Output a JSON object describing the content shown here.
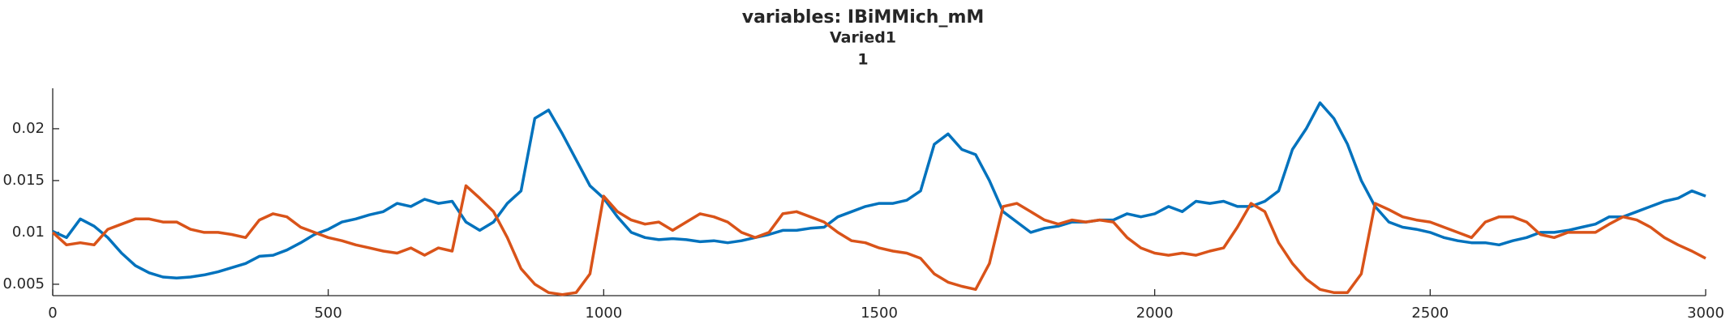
{
  "chart_data": {
    "type": "line",
    "title": "variables: IBiMMich_mM",
    "subtitle": "Varied1",
    "subtitle2": "1",
    "x": [
      0,
      25,
      50,
      75,
      100,
      125,
      150,
      175,
      200,
      225,
      250,
      275,
      300,
      325,
      350,
      375,
      400,
      425,
      450,
      475,
      500,
      525,
      550,
      575,
      600,
      625,
      650,
      675,
      700,
      725,
      750,
      775,
      800,
      825,
      850,
      875,
      900,
      925,
      950,
      975,
      1000,
      1025,
      1050,
      1075,
      1100,
      1125,
      1150,
      1175,
      1200,
      1225,
      1250,
      1275,
      1300,
      1325,
      1350,
      1375,
      1400,
      1425,
      1450,
      1475,
      1500,
      1525,
      1550,
      1575,
      1600,
      1625,
      1650,
      1675,
      1700,
      1725,
      1750,
      1775,
      1800,
      1825,
      1850,
      1875,
      1900,
      1925,
      1950,
      1975,
      2000,
      2025,
      2050,
      2075,
      2100,
      2125,
      2150,
      2175,
      2200,
      2225,
      2250,
      2275,
      2300,
      2325,
      2350,
      2375,
      2400,
      2425,
      2450,
      2475,
      2500,
      2525,
      2550,
      2575,
      2600,
      2625,
      2650,
      2675,
      2700,
      2725,
      2750,
      2775,
      2800,
      2825,
      2850,
      2875,
      2900,
      2925,
      2950,
      2975,
      3000
    ],
    "series": [
      {
        "color": "#0072BD",
        "values": [
          0.0101,
          0.0095,
          0.0113,
          0.0106,
          0.0095,
          0.008,
          0.0068,
          0.0061,
          0.0057,
          0.0056,
          0.0057,
          0.0059,
          0.0062,
          0.0066,
          0.007,
          0.0077,
          0.0078,
          0.0083,
          0.009,
          0.0098,
          0.0103,
          0.011,
          0.0113,
          0.0117,
          0.012,
          0.0128,
          0.0125,
          0.0132,
          0.0128,
          0.013,
          0.011,
          0.0102,
          0.011,
          0.0128,
          0.014,
          0.021,
          0.0218,
          0.0195,
          0.017,
          0.0145,
          0.0133,
          0.0115,
          0.01,
          0.0095,
          0.0093,
          0.0094,
          0.0093,
          0.0091,
          0.0092,
          0.009,
          0.0092,
          0.0095,
          0.0098,
          0.0102,
          0.0102,
          0.0104,
          0.0105,
          0.0115,
          0.012,
          0.0125,
          0.0128,
          0.0128,
          0.0131,
          0.014,
          0.0185,
          0.0195,
          0.018,
          0.0175,
          0.015,
          0.012,
          0.011,
          0.01,
          0.0104,
          0.0106,
          0.011,
          0.011,
          0.0112,
          0.0112,
          0.0118,
          0.0115,
          0.0118,
          0.0125,
          0.012,
          0.013,
          0.0128,
          0.013,
          0.0125,
          0.0125,
          0.013,
          0.014,
          0.018,
          0.02,
          0.0225,
          0.021,
          0.0185,
          0.015,
          0.0125,
          0.011,
          0.0105,
          0.0103,
          0.01,
          0.0095,
          0.0092,
          0.009,
          0.009,
          0.0088,
          0.0092,
          0.0095,
          0.01,
          0.01,
          0.0102,
          0.0105,
          0.0108,
          0.0115,
          0.0115,
          0.012,
          0.0125,
          0.013,
          0.0133,
          0.014,
          0.0135
        ]
      },
      {
        "color": "#D95319",
        "values": [
          0.01,
          0.0088,
          0.009,
          0.0088,
          0.0103,
          0.0108,
          0.0113,
          0.0113,
          0.011,
          0.011,
          0.0103,
          0.01,
          0.01,
          0.0098,
          0.0095,
          0.0112,
          0.0118,
          0.0115,
          0.0105,
          0.01,
          0.0095,
          0.0092,
          0.0088,
          0.0085,
          0.0082,
          0.008,
          0.0085,
          0.0078,
          0.0085,
          0.0082,
          0.0145,
          0.0133,
          0.012,
          0.0095,
          0.0065,
          0.005,
          0.0042,
          0.004,
          0.0042,
          0.006,
          0.0135,
          0.012,
          0.0112,
          0.0108,
          0.011,
          0.0102,
          0.011,
          0.0118,
          0.0115,
          0.011,
          0.01,
          0.0095,
          0.01,
          0.0118,
          0.012,
          0.0115,
          0.011,
          0.01,
          0.0092,
          0.009,
          0.0085,
          0.0082,
          0.008,
          0.0075,
          0.006,
          0.0052,
          0.0048,
          0.0045,
          0.007,
          0.0125,
          0.0128,
          0.012,
          0.0112,
          0.0108,
          0.0112,
          0.011,
          0.0112,
          0.011,
          0.0095,
          0.0085,
          0.008,
          0.0078,
          0.008,
          0.0078,
          0.0082,
          0.0085,
          0.0105,
          0.0128,
          0.012,
          0.009,
          0.007,
          0.0055,
          0.0045,
          0.0042,
          0.0042,
          0.006,
          0.0128,
          0.0122,
          0.0115,
          0.0112,
          0.011,
          0.0105,
          0.01,
          0.0095,
          0.011,
          0.0115,
          0.0115,
          0.011,
          0.0098,
          0.0095,
          0.01,
          0.01,
          0.01,
          0.0108,
          0.0115,
          0.0112,
          0.0105,
          0.0095,
          0.0088,
          0.0082,
          0.0075
        ]
      }
    ],
    "xlim": [
      0,
      3000
    ],
    "xticks": [
      0,
      500,
      1000,
      1500,
      2000,
      2500,
      3000
    ],
    "ylim": [
      0.0039,
      0.0239
    ],
    "yticks": [
      0.005,
      0.01,
      0.015,
      0.02
    ],
    "grid": false
  }
}
